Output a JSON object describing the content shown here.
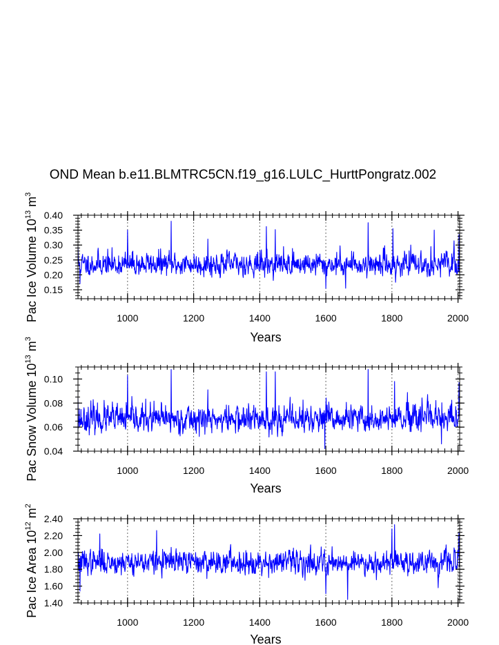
{
  "title": "OND Mean b.e11.BLMTRC5CN.f19_g16.LULC_HurttPongratz.002",
  "colors": {
    "series": "#0000ff",
    "axis": "#000000",
    "refline": "#666666"
  },
  "chart_data": [
    {
      "type": "line",
      "name": "ice-volume",
      "ylabel_main": "Pac Ice Volume 10",
      "ylabel_exp": "13",
      "ylabel_unit": " m",
      "ylabel_unit_exp": "3",
      "xlabel": "Years",
      "xlim": [
        850,
        2005
      ],
      "ylim": [
        0.12,
        0.4
      ],
      "xticks": [
        1000,
        1200,
        1400,
        1600,
        1800,
        2000
      ],
      "xtick_labels": [
        "1000",
        "1200",
        "1400",
        "1600",
        "1800",
        "2000"
      ],
      "yticks": [
        0.15,
        0.2,
        0.25,
        0.3,
        0.35,
        0.4
      ],
      "ytick_labels": [
        "0.15",
        "0.20",
        "0.25",
        "0.30",
        "0.35",
        "0.40"
      ],
      "yminor_step": 0.01,
      "ref_lines_x": [
        1000,
        1200,
        1400,
        1600,
        1800,
        2000
      ],
      "series": {
        "name": "Pac Ice Volume",
        "x_start": 850,
        "x_end": 2005,
        "base": 0.232,
        "sd": 0.022,
        "skew": 1.2,
        "seed": 11,
        "peaks": [
          [
            850,
            0.295
          ],
          [
            856,
            0.17
          ],
          [
            1000,
            0.35
          ],
          [
            1132,
            0.38
          ],
          [
            1243,
            0.32
          ],
          [
            1420,
            0.362
          ],
          [
            1447,
            0.352
          ],
          [
            1600,
            0.155
          ],
          [
            1660,
            0.155
          ],
          [
            1728,
            0.375
          ],
          [
            1803,
            0.355
          ],
          [
            1811,
            0.175
          ],
          [
            1928,
            0.35
          ],
          [
            2003,
            0.335
          ]
        ]
      }
    },
    {
      "type": "line",
      "name": "snow-volume",
      "ylabel_main": "Pac Snow Volume 10",
      "ylabel_exp": "13",
      "ylabel_unit": " m",
      "ylabel_unit_exp": "3",
      "xlabel": "Years",
      "xlim": [
        850,
        2005
      ],
      "ylim": [
        0.04,
        0.11
      ],
      "xticks": [
        1000,
        1200,
        1400,
        1600,
        1800,
        2000
      ],
      "xtick_labels": [
        "1000",
        "1200",
        "1400",
        "1600",
        "1800",
        "2000"
      ],
      "yticks": [
        0.04,
        0.06,
        0.08,
        0.1
      ],
      "ytick_labels": [
        "0.04",
        "0.06",
        "0.08",
        "0.10"
      ],
      "yminor_step": 0.005,
      "ref_lines_x": [
        1000,
        1200,
        1400,
        1600,
        1800,
        2000
      ],
      "series": {
        "name": "Pac Snow Volume",
        "x_start": 850,
        "x_end": 2005,
        "base": 0.0655,
        "sd": 0.0065,
        "skew": 1.2,
        "seed": 23,
        "peaks": [
          [
            850,
            0.084
          ],
          [
            1000,
            0.103
          ],
          [
            1132,
            0.108
          ],
          [
            1243,
            0.091
          ],
          [
            1420,
            0.106
          ],
          [
            1447,
            0.106
          ],
          [
            1597,
            0.042
          ],
          [
            1728,
            0.108
          ],
          [
            1808,
            0.098
          ],
          [
            1950,
            0.046
          ],
          [
            2003,
            0.097
          ]
        ]
      }
    },
    {
      "type": "line",
      "name": "ice-area",
      "ylabel_main": "Pac Ice Area 10",
      "ylabel_exp": "12",
      "ylabel_unit": " m",
      "ylabel_unit_exp": "2",
      "xlabel": "Years",
      "xlim": [
        850,
        2005
      ],
      "ylim": [
        1.4,
        2.4
      ],
      "xticks": [
        1000,
        1200,
        1400,
        1600,
        1800,
        2000
      ],
      "xtick_labels": [
        "1000",
        "1200",
        "1400",
        "1600",
        "1800",
        "2000"
      ],
      "yticks": [
        1.4,
        1.6,
        1.8,
        2.0,
        2.2,
        2.4
      ],
      "ytick_labels": [
        "1.40",
        "1.60",
        "1.80",
        "2.00",
        "2.20",
        "2.40"
      ],
      "yminor_step": 0.04,
      "ref_lines_x": [
        1000,
        1200,
        1400,
        1600,
        1800,
        2000
      ],
      "series": {
        "name": "Pac Ice Area",
        "x_start": 850,
        "x_end": 2005,
        "base": 1.88,
        "sd": 0.09,
        "skew": 0.4,
        "seed": 37,
        "peaks": [
          [
            856,
            1.54
          ],
          [
            916,
            2.22
          ],
          [
            1088,
            2.26
          ],
          [
            1600,
            1.51
          ],
          [
            1666,
            1.44
          ],
          [
            1800,
            2.28
          ],
          [
            1808,
            2.33
          ],
          [
            1940,
            1.58
          ],
          [
            2003,
            2.23
          ]
        ]
      }
    }
  ]
}
